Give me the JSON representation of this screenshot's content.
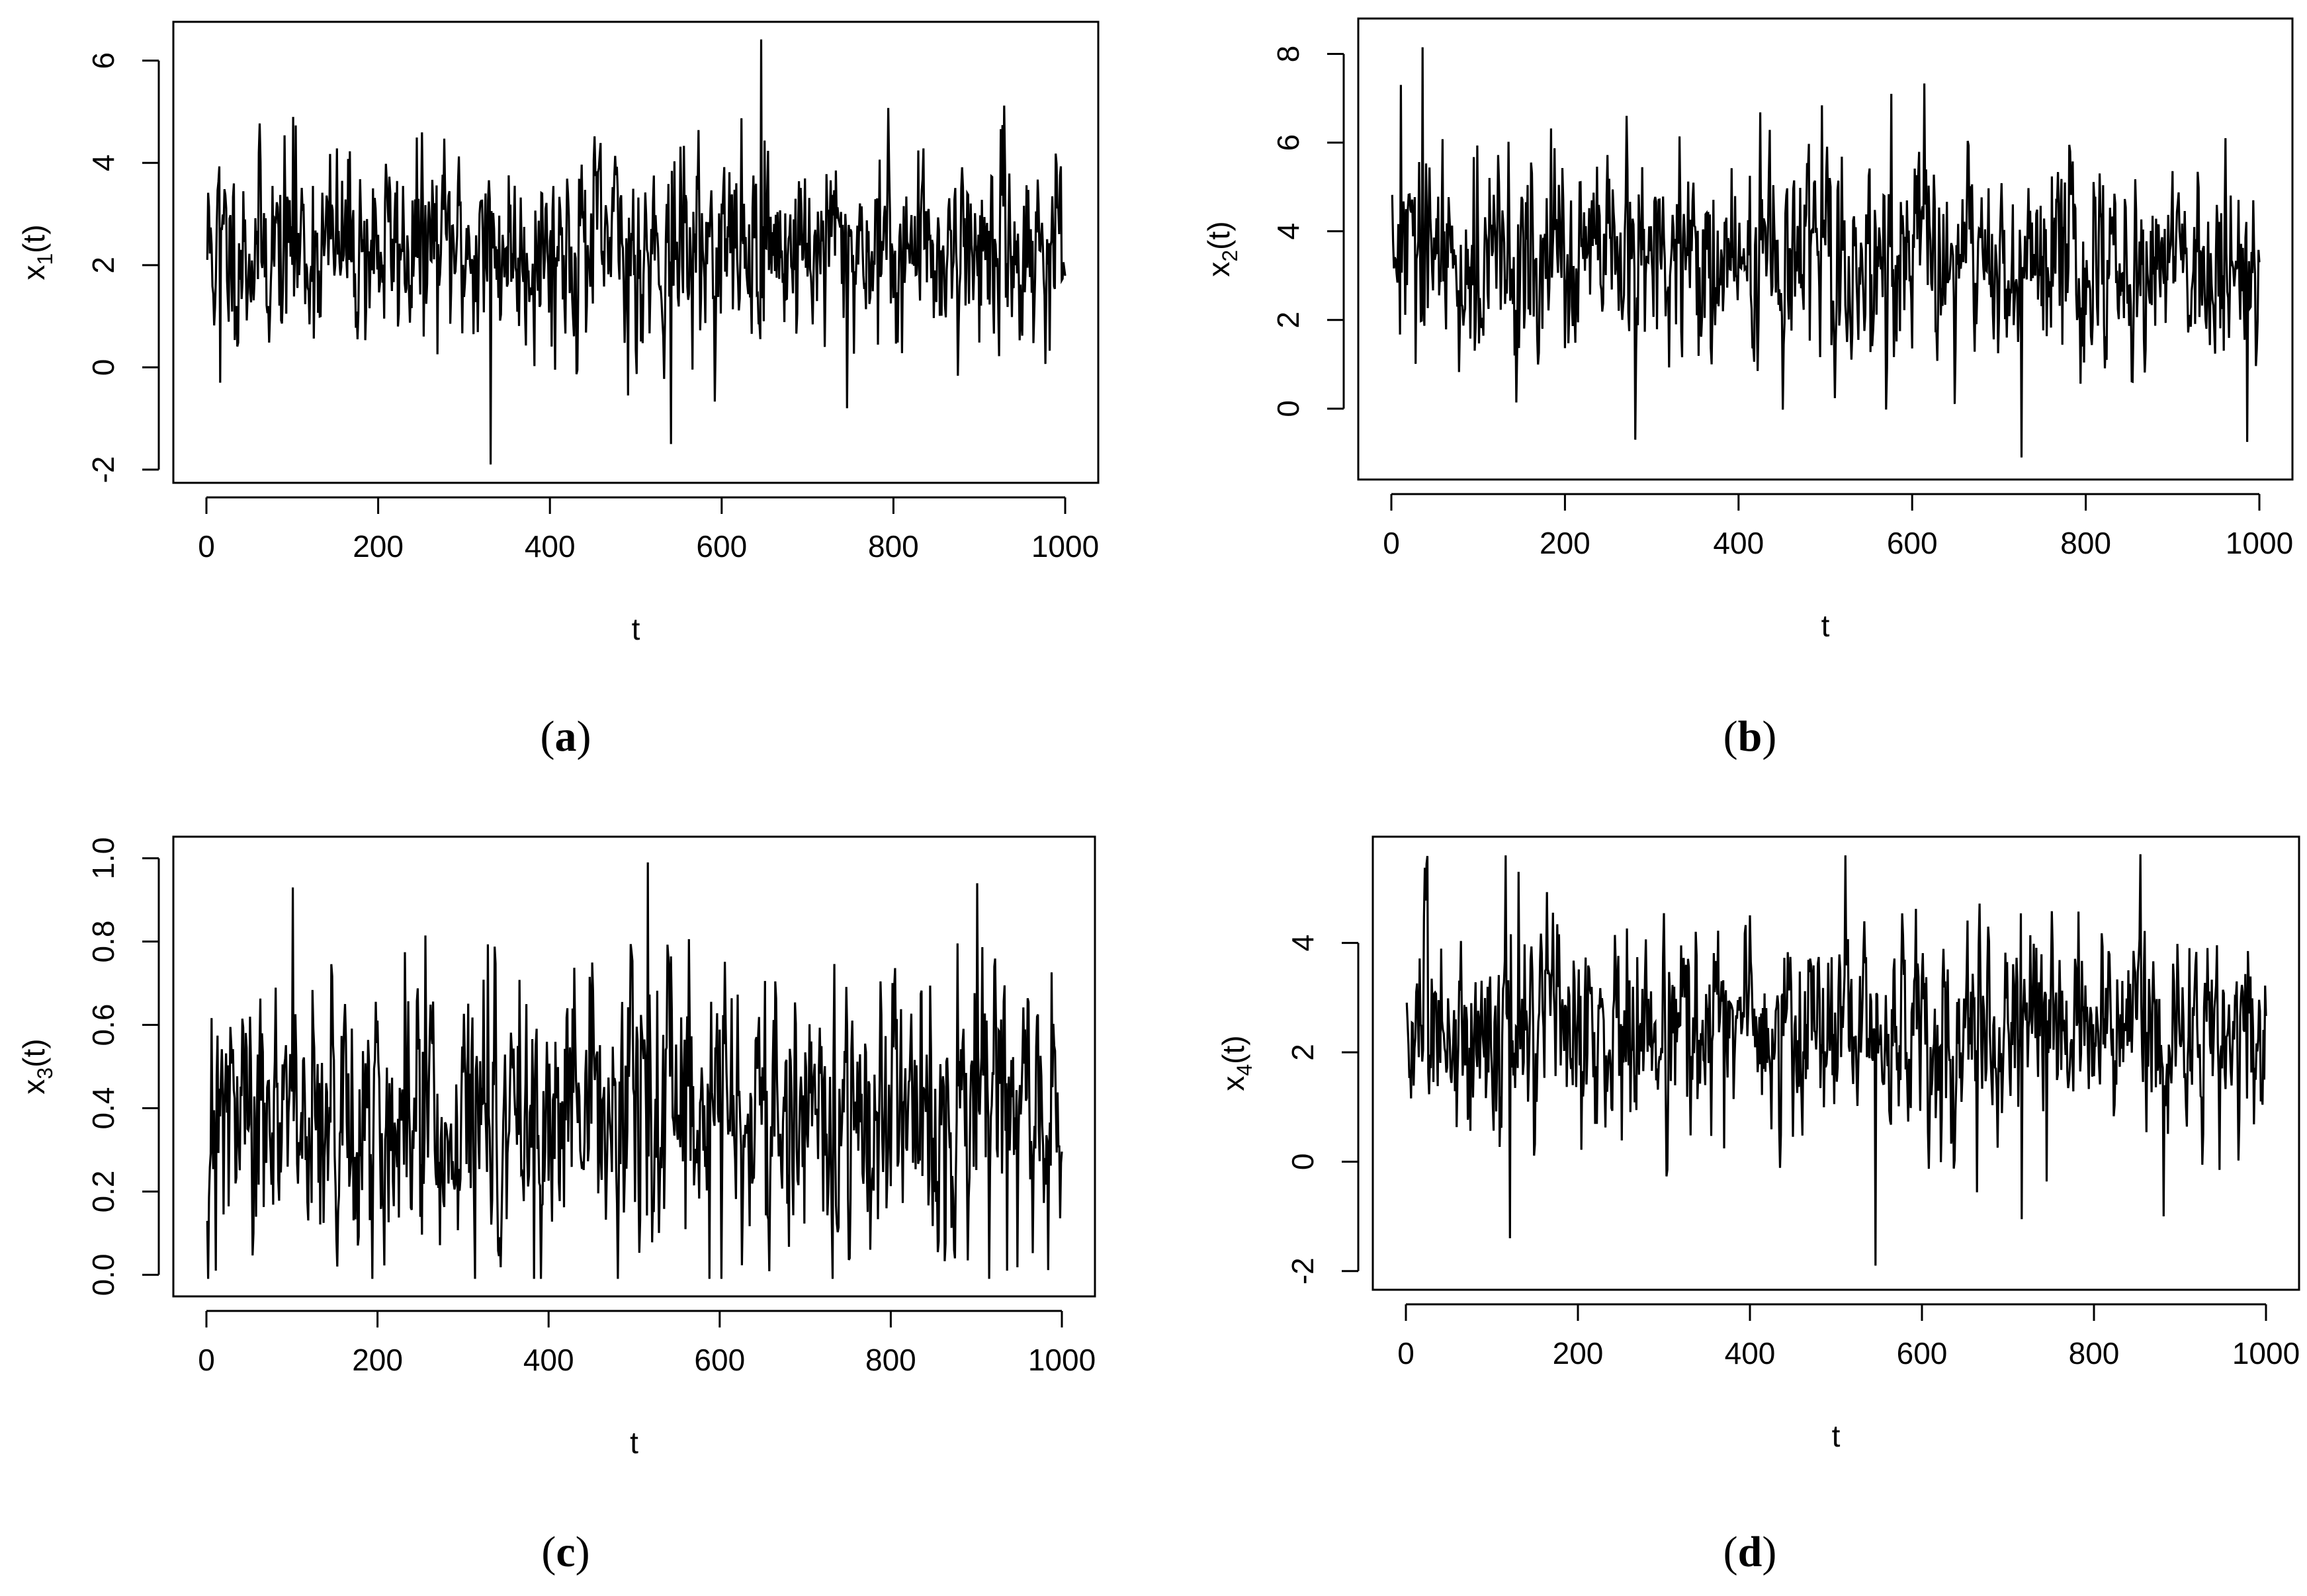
{
  "chart_data": [
    {
      "type": "line",
      "panel": "a",
      "caption_letter": "a",
      "xlabel": "t",
      "ylabel_base": "x",
      "ylabel_sub": "1",
      "ylabel_tail": "(t)",
      "xlim": [
        0,
        1000
      ],
      "ylim": [
        -2,
        6.5
      ],
      "xticks": [
        "0",
        "200",
        "400",
        "600",
        "800",
        "1000"
      ],
      "xtick_values": [
        0,
        200,
        400,
        600,
        800,
        1000
      ],
      "yticks": [
        "-2",
        "0",
        "2",
        "4",
        "6"
      ],
      "ytick_values": [
        -2,
        0,
        2,
        4,
        6
      ],
      "n_points": 1000,
      "mean": 2.35,
      "sd": 0.95,
      "spikes": [
        [
          330,
          -1.9
        ],
        [
          645,
          6.45
        ],
        [
          540,
          -1.5
        ],
        [
          490,
          -0.55
        ],
        [
          745,
          -0.8
        ],
        [
          100,
          4.9
        ],
        [
          15,
          -0.3
        ]
      ],
      "line_color": "#000000",
      "grid": false
    },
    {
      "type": "line",
      "panel": "b",
      "caption_letter": "b",
      "xlabel": "t",
      "ylabel_base": "x",
      "ylabel_sub": "2",
      "ylabel_tail": "(t)",
      "xlim": [
        0,
        1000
      ],
      "ylim": [
        -1.3,
        8.5
      ],
      "xticks": [
        "0",
        "200",
        "400",
        "600",
        "800",
        "1000"
      ],
      "xtick_values": [
        0,
        200,
        400,
        600,
        800,
        1000
      ],
      "yticks": [
        "0",
        "2",
        "4",
        "6",
        "8"
      ],
      "ytick_values": [
        0,
        2,
        4,
        6,
        8
      ],
      "n_points": 1000,
      "mean": 3.3,
      "sd": 1.15,
      "spikes": [
        [
          35,
          8.15
        ],
        [
          10,
          7.3
        ],
        [
          280,
          -0.7
        ],
        [
          725,
          -1.1
        ],
        [
          575,
          7.1
        ],
        [
          985,
          -0.75
        ],
        [
          960,
          6.1
        ]
      ],
      "line_color": "#000000",
      "grid": false
    },
    {
      "type": "line",
      "panel": "c",
      "caption_letter": "c",
      "xlabel": "t",
      "ylabel_base": "x",
      "ylabel_sub": "3",
      "ylabel_tail": "(t)",
      "xlim": [
        0,
        1000
      ],
      "ylim": [
        -0.02,
        1.02
      ],
      "xticks": [
        "0",
        "200",
        "400",
        "600",
        "800",
        "1000"
      ],
      "xtick_values": [
        0,
        200,
        400,
        600,
        800,
        1000
      ],
      "yticks": [
        "0.0",
        "0.2",
        "0.4",
        "0.6",
        "0.8",
        "1.0"
      ],
      "ytick_values": [
        0,
        0.2,
        0.4,
        0.6,
        0.8,
        1.0
      ],
      "n_points": 1000,
      "mean": 0.37,
      "sd": 0.16,
      "spikes": [
        [
          515,
          0.99
        ],
        [
          100,
          0.93
        ],
        [
          900,
          0.94
        ],
        [
          935,
          0.01
        ],
        [
          10,
          0.01
        ]
      ],
      "line_color": "#000000",
      "grid": false
    },
    {
      "type": "line",
      "panel": "d",
      "caption_letter": "d",
      "xlabel": "t",
      "ylabel_base": "x",
      "ylabel_sub": "4",
      "ylabel_tail": "(t)",
      "xlim": [
        0,
        1000
      ],
      "ylim": [
        -2.1,
        5.7
      ],
      "xticks": [
        "0",
        "200",
        "400",
        "600",
        "800",
        "1000"
      ],
      "xtick_values": [
        0,
        200,
        400,
        600,
        800,
        1000
      ],
      "yticks": [
        "-2",
        "0",
        "2",
        "4"
      ],
      "ytick_values": [
        -2,
        0,
        2,
        4
      ],
      "n_points": 1000,
      "mean": 2.4,
      "sd": 0.95,
      "spikes": [
        [
          545,
          -1.9
        ],
        [
          120,
          -1.4
        ],
        [
          115,
          5.6
        ],
        [
          510,
          5.6
        ],
        [
          715,
          -1.05
        ],
        [
          880,
          -1.0
        ],
        [
          130,
          5.3
        ]
      ],
      "line_color": "#000000",
      "grid": false
    }
  ]
}
